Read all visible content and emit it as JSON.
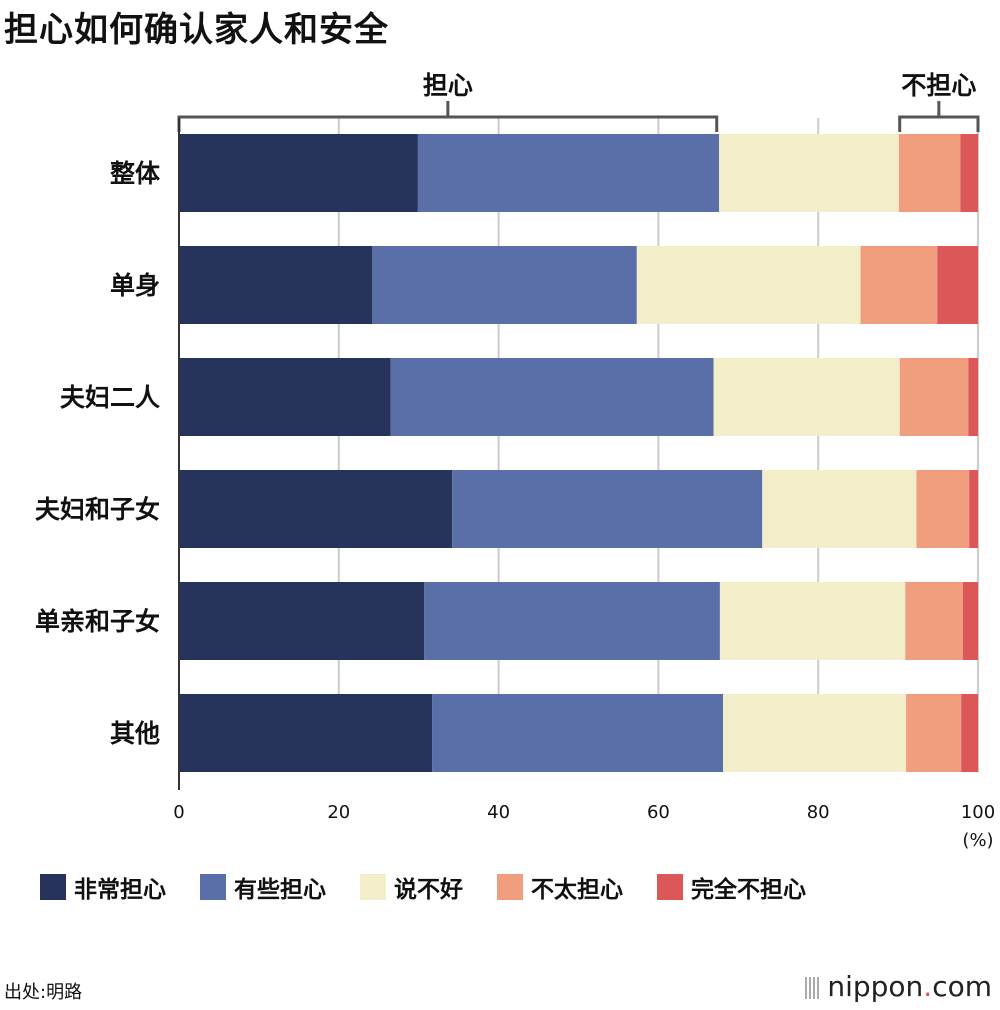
{
  "title": "担心如何确认家人和安全",
  "brackets": {
    "worry": "担心",
    "no_worry": "不担心"
  },
  "unit": "(%)",
  "source": "出处:明路",
  "brand": {
    "name": "nippon",
    "dot": ".",
    "suffix": "com"
  },
  "chart_data": {
    "type": "bar",
    "orientation": "horizontal",
    "stacked": true,
    "categories": [
      "整体",
      "单身",
      "夫妇二人",
      "夫妇和子女",
      "单亲和子女",
      "其他"
    ],
    "series": [
      {
        "name": "非常担心",
        "color": "#26345b",
        "values": [
          29.9,
          24.2,
          26.5,
          34.2,
          30.7,
          31.7
        ]
      },
      {
        "name": "有些担心",
        "color": "#5a6ea7",
        "values": [
          37.7,
          33.1,
          40.4,
          38.8,
          37.0,
          36.4
        ]
      },
      {
        "name": "说不好",
        "color": "#f2eec9",
        "values": [
          22.5,
          28.0,
          23.3,
          19.3,
          23.2,
          22.9
        ]
      },
      {
        "name": "不太担心",
        "color": "#f09e7e",
        "values": [
          7.7,
          9.6,
          8.6,
          6.6,
          7.2,
          6.9
        ]
      },
      {
        "name": "完全不担心",
        "color": "#db5758",
        "values": [
          2.2,
          5.1,
          1.2,
          1.1,
          1.9,
          2.1
        ]
      }
    ],
    "xlim": [
      0,
      100
    ],
    "xticks": [
      "0",
      "20",
      "40",
      "60",
      "80",
      "100"
    ],
    "xtick_values": [
      0,
      20,
      40,
      60,
      80,
      100
    ],
    "grid": true,
    "legend_position": "bottom"
  }
}
